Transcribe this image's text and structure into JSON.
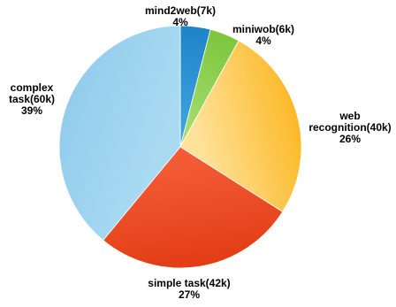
{
  "chart_data": {
    "type": "pie",
    "title": "",
    "start_angle_deg": 0,
    "direction": "clockwise",
    "slices": [
      {
        "name": "mind2web(7k)",
        "value": 4,
        "percent_label": "4%",
        "label_lines": [
          "mind2web(7k)",
          "4%"
        ],
        "colors": [
          "#3ea2dc",
          "#1e84c8"
        ]
      },
      {
        "name": "miniwob(6k)",
        "value": 4,
        "percent_label": "4%",
        "label_lines": [
          "miniwob(6k)",
          "4%"
        ],
        "colors": [
          "#a5dc6e",
          "#7cc63c"
        ]
      },
      {
        "name": "web recognition(40k)",
        "value": 26,
        "percent_label": "26%",
        "label_lines": [
          "web",
          "recognition(40k)",
          "26%"
        ],
        "colors": [
          "#ffe29a",
          "#fbb928"
        ]
      },
      {
        "name": "simple task(42k)",
        "value": 27,
        "percent_label": "27%",
        "label_lines": [
          "simple task(42k)",
          "27%"
        ],
        "colors": [
          "#f25b35",
          "#e23c14"
        ]
      },
      {
        "name": "complex task(60k)",
        "value": 39,
        "percent_label": "39%",
        "label_lines": [
          "complex",
          "task(60k)",
          "39%"
        ],
        "colors": [
          "#a9daf2",
          "#93cdec"
        ]
      }
    ]
  }
}
